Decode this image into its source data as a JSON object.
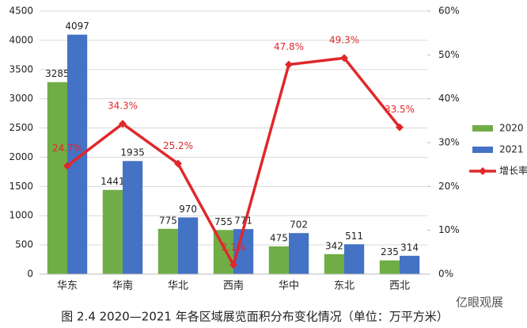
{
  "chart_data": {
    "type": "bar_line",
    "title": "图 2.4  2020—2021 年各区域展览面积分布变化情况（单位：万平方米）",
    "watermark": "亿眼观展",
    "categories": [
      "华东",
      "华南",
      "华北",
      "西南",
      "华中",
      "东北",
      "西北"
    ],
    "series": [
      {
        "name": "2020",
        "type": "bar",
        "color": "#70ad47",
        "values": [
          3285,
          1441,
          775,
          755,
          475,
          342,
          235
        ]
      },
      {
        "name": "2021",
        "type": "bar",
        "color": "#4472c4",
        "values": [
          4097,
          1935,
          970,
          771,
          702,
          511,
          314
        ]
      },
      {
        "name": "增长率",
        "type": "line",
        "axis": "y2",
        "color": "#e0282b",
        "values": [
          24.7,
          34.3,
          25.2,
          2.1,
          47.8,
          49.3,
          33.5
        ],
        "value_labels": [
          "24.7%",
          "34.3%",
          "25.2%",
          "2.1%",
          "47.8%",
          "49.3%",
          "33.5%"
        ]
      }
    ],
    "ylim": [
      0,
      4500
    ],
    "yticks": [
      0,
      500,
      1000,
      1500,
      2000,
      2500,
      3000,
      3500,
      4000,
      4500
    ],
    "y2lim": [
      0,
      60
    ],
    "y2ticks": [
      {
        "value": 0,
        "label": "0%"
      },
      {
        "value": 10,
        "label": "10%"
      },
      {
        "value": 20,
        "label": "20%"
      },
      {
        "value": 30,
        "label": "30%"
      },
      {
        "value": 40,
        "label": "40%"
      },
      {
        "value": 50,
        "label": "50%"
      },
      {
        "value": 60,
        "label": "60%"
      }
    ],
    "grid": true,
    "legend": "right"
  }
}
